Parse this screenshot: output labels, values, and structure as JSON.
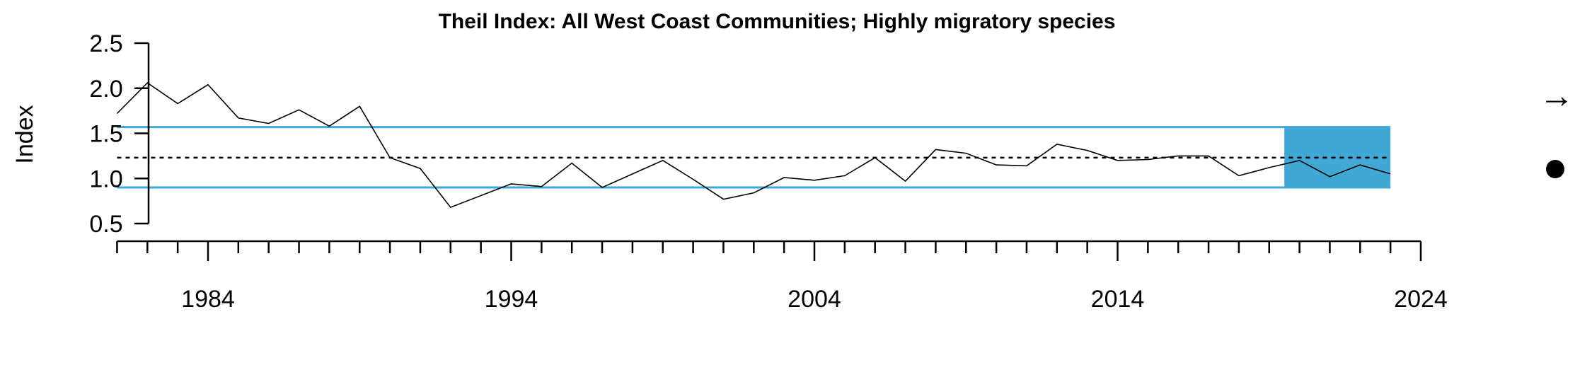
{
  "chart_data": {
    "type": "line",
    "title": "Theil Index: All West Coast Communities; Highly migratory species",
    "xlabel": "",
    "ylabel": "Index",
    "xlim": [
      1981,
      2024
    ],
    "ylim": [
      0.5,
      2.5
    ],
    "x_ticks_labeled": [
      1984,
      1994,
      2004,
      2014,
      2024
    ],
    "y_ticks": [
      "0.5",
      "1.0",
      "1.5",
      "2.0",
      "2.5"
    ],
    "series": [
      {
        "x": [
          1981,
          1982,
          1983,
          1984,
          1985,
          1986,
          1987,
          1988,
          1989,
          1990,
          1991,
          1992,
          1993,
          1994,
          1995,
          1996,
          1997,
          1998,
          1999,
          2000,
          2001,
          2002,
          2003,
          2004,
          2005,
          2006,
          2007,
          2008,
          2009,
          2010,
          2011,
          2012,
          2013,
          2014,
          2015,
          2016,
          2017,
          2018,
          2019,
          2020,
          2021,
          2022,
          2023
        ],
        "values": [
          1.72,
          2.06,
          1.83,
          2.04,
          1.67,
          1.61,
          1.76,
          1.58,
          1.8,
          1.23,
          1.11,
          0.68,
          0.81,
          0.94,
          0.91,
          1.17,
          0.9,
          1.05,
          1.2,
          0.99,
          0.77,
          0.84,
          1.01,
          0.98,
          1.03,
          1.23,
          0.97,
          1.32,
          1.28,
          1.15,
          1.14,
          1.38,
          1.31,
          1.2,
          1.21,
          1.25,
          1.25,
          1.03,
          1.12,
          1.2,
          1.02,
          1.15,
          1.05
        ]
      }
    ],
    "reference_lines": {
      "mean": 1.23,
      "upper_sd": 1.57,
      "lower_sd": 0.9
    },
    "highlight_period": [
      2019,
      2023
    ],
    "trend_symbol": "→",
    "mean_symbol": "●",
    "colors": {
      "sd_line": "#41A7D5",
      "highlight": "#41A7D5",
      "series": "#000000",
      "mean_line": "#000000"
    }
  }
}
